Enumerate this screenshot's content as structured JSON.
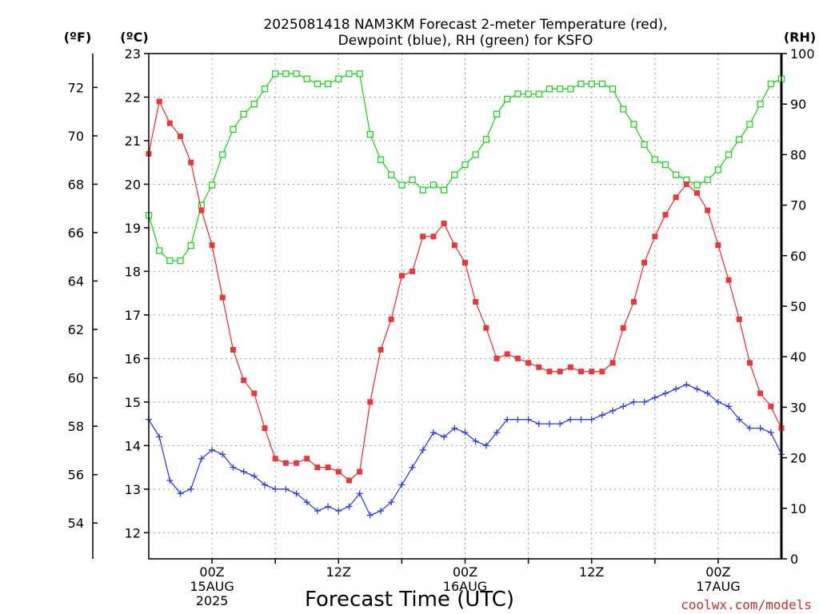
{
  "chart_data": {
    "type": "line",
    "title_line1": "2025081418 NAM3KM Forecast 2-meter Temperature (red),",
    "title_line2": "Dewpoint (blue), RH (green) for KSFO",
    "xlabel": "Forecast Time (UTC)",
    "credit": "coolwx.com/models",
    "units": {
      "fahrenheit": "(ºF)",
      "celsius": "(ºC)",
      "rh": "(RH)"
    },
    "x_hours_range": [
      -6,
      54
    ],
    "x_ticks": [
      {
        "hour": 0,
        "lines": [
          "00Z",
          "15AUG",
          "2025"
        ]
      },
      {
        "hour": 12,
        "lines": [
          "12Z"
        ]
      },
      {
        "hour": 24,
        "lines": [
          "00Z",
          "16AUG"
        ]
      },
      {
        "hour": 36,
        "lines": [
          "12Z"
        ]
      },
      {
        "hour": 48,
        "lines": [
          "00Z",
          "17AUG"
        ]
      }
    ],
    "y_celsius": {
      "min": 11.4,
      "max": 23,
      "ticks": [
        12,
        13,
        14,
        15,
        16,
        17,
        18,
        19,
        20,
        21,
        22,
        23
      ]
    },
    "y_fahrenheit": {
      "ticks": [
        54,
        56,
        58,
        60,
        62,
        64,
        66,
        68,
        70,
        72
      ]
    },
    "y_rh": {
      "min": 0,
      "max": 100,
      "ticks": [
        0,
        10,
        20,
        30,
        40,
        50,
        60,
        70,
        80,
        90,
        100
      ]
    },
    "x": [
      -6,
      -5,
      -4,
      -3,
      -2,
      -1,
      0,
      1,
      2,
      3,
      4,
      5,
      6,
      7,
      8,
      9,
      10,
      11,
      12,
      13,
      14,
      15,
      16,
      17,
      18,
      19,
      20,
      21,
      22,
      23,
      24,
      25,
      26,
      27,
      28,
      29,
      30,
      31,
      32,
      33,
      34,
      35,
      36,
      37,
      38,
      39,
      40,
      41,
      42,
      43,
      44,
      45,
      46,
      47,
      48,
      49,
      50,
      51,
      52,
      53,
      54
    ],
    "series": [
      {
        "name": "Temperature",
        "axis": "celsius",
        "color": "#e8383d",
        "marker": "filled-square",
        "values": [
          20.7,
          21.9,
          21.4,
          21.1,
          20.5,
          19.4,
          18.6,
          17.4,
          16.2,
          15.5,
          15.2,
          14.4,
          13.7,
          13.6,
          13.6,
          13.7,
          13.5,
          13.5,
          13.4,
          13.2,
          13.4,
          15.0,
          16.2,
          16.9,
          17.9,
          18.0,
          18.8,
          18.8,
          19.1,
          18.6,
          18.2,
          17.3,
          16.7,
          16.0,
          16.1,
          16.0,
          15.9,
          15.8,
          15.7,
          15.7,
          15.8,
          15.7,
          15.7,
          15.7,
          15.9,
          16.7,
          17.3,
          18.2,
          18.8,
          19.3,
          19.7,
          20.0,
          19.8,
          19.4,
          18.6,
          17.8,
          16.9,
          15.9,
          15.2,
          14.9,
          14.4
        ]
      },
      {
        "name": "Dewpoint",
        "axis": "celsius",
        "color": "#3240e6",
        "marker": "plus",
        "values": [
          14.6,
          14.2,
          13.2,
          12.9,
          13.0,
          13.7,
          13.9,
          13.8,
          13.5,
          13.4,
          13.3,
          13.1,
          13.0,
          13.0,
          12.9,
          12.7,
          12.5,
          12.6,
          12.5,
          12.6,
          12.9,
          12.4,
          12.5,
          12.7,
          13.1,
          13.5,
          13.9,
          14.3,
          14.2,
          14.4,
          14.3,
          14.1,
          14.0,
          14.3,
          14.6,
          14.6,
          14.6,
          14.5,
          14.5,
          14.5,
          14.6,
          14.6,
          14.6,
          14.7,
          14.8,
          14.9,
          15.0,
          15.0,
          15.1,
          15.2,
          15.3,
          15.4,
          15.3,
          15.2,
          15.0,
          14.9,
          14.6,
          14.4,
          14.4,
          14.3,
          13.8
        ]
      },
      {
        "name": "RH",
        "axis": "rh",
        "color": "#22d422",
        "marker": "open-square",
        "values": [
          68,
          61,
          59,
          59,
          62,
          70,
          74,
          80,
          85,
          88,
          90,
          93,
          96,
          96,
          96,
          95,
          94,
          94,
          95,
          96,
          96,
          84,
          79,
          76,
          74,
          75,
          73,
          74,
          73,
          76,
          78,
          80,
          83,
          88,
          91,
          92,
          92,
          92,
          93,
          93,
          93,
          94,
          94,
          94,
          93,
          89,
          86,
          82,
          79,
          78,
          76,
          75,
          74,
          75,
          77,
          80,
          83,
          86,
          90,
          94,
          95
        ]
      }
    ]
  }
}
